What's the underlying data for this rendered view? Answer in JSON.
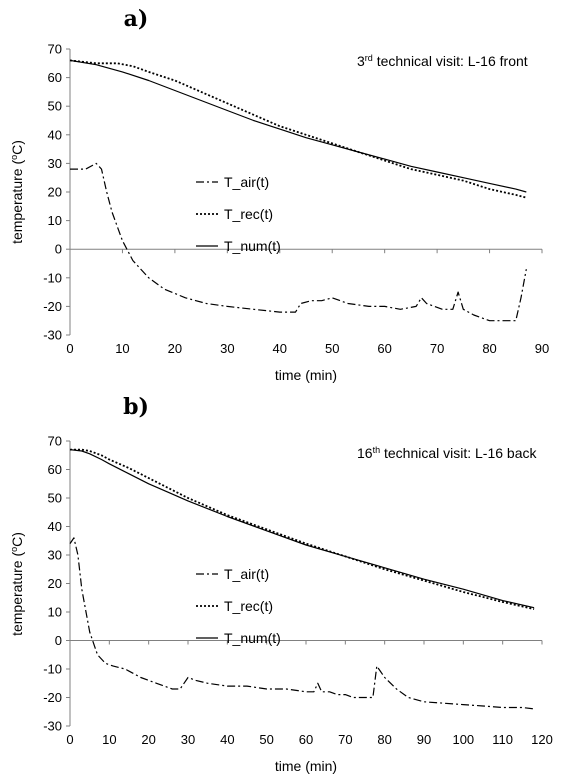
{
  "chart_data": [
    {
      "panel": "a)",
      "type": "line",
      "annotation": {
        "prefix": "3",
        "sup": "rd",
        "suffix": " technical visit: L-16 front"
      },
      "xlabel": "time (min)",
      "ylabel": {
        "text": "temperature (",
        "sup": "o",
        "tail": "C)"
      },
      "xlim": [
        0,
        90
      ],
      "ylim": [
        -30,
        70
      ],
      "xticks": [
        0,
        10,
        20,
        30,
        40,
        50,
        60,
        70,
        80,
        90
      ],
      "yticks": [
        -30,
        -20,
        -10,
        0,
        10,
        20,
        30,
        40,
        50,
        60,
        70
      ],
      "legend": {
        "placement": "center-left"
      },
      "series": [
        {
          "name": "T_air(t)",
          "style": "dashdot",
          "x": [
            0,
            3,
            5,
            6,
            7,
            8,
            10,
            12,
            15,
            18,
            22,
            26,
            30,
            35,
            40,
            43,
            44,
            46,
            48,
            50,
            53,
            57,
            60,
            63,
            66,
            67,
            68,
            71,
            73,
            74,
            75,
            77,
            80,
            82,
            84,
            85,
            86,
            87
          ],
          "y": [
            28,
            28,
            30,
            28,
            20,
            13,
            3,
            -4,
            -10,
            -14,
            -17,
            -19,
            -20,
            -21,
            -22,
            -22,
            -19,
            -18,
            -18,
            -17,
            -19,
            -20,
            -20,
            -21,
            -20,
            -17,
            -19,
            -21,
            -21,
            -15,
            -21,
            -23,
            -25,
            -25,
            -25,
            -25,
            -17,
            -7
          ]
        },
        {
          "name": "T_rec(t)",
          "style": "dotted",
          "x": [
            0,
            5,
            9,
            12,
            15,
            20,
            25,
            30,
            35,
            40,
            45,
            50,
            55,
            60,
            65,
            70,
            75,
            80,
            85,
            87
          ],
          "y": [
            66,
            65,
            65,
            64,
            62,
            59,
            55,
            51,
            47,
            43,
            40,
            37,
            34,
            31,
            28,
            26,
            24,
            21,
            19,
            18
          ]
        },
        {
          "name": "T_num(t)",
          "style": "solid",
          "x": [
            0,
            5,
            10,
            15,
            20,
            25,
            30,
            35,
            40,
            45,
            50,
            55,
            60,
            65,
            70,
            75,
            80,
            85,
            87
          ],
          "y": [
            66,
            64.5,
            62,
            59,
            55.5,
            52,
            48.5,
            45,
            42,
            39,
            36.5,
            34,
            31.5,
            29,
            27,
            25,
            23,
            21,
            20
          ]
        }
      ]
    },
    {
      "panel": "b)",
      "type": "line",
      "annotation": {
        "prefix": "16",
        "sup": "th",
        "suffix": " technical visit: L-16 back"
      },
      "xlabel": "time (min)",
      "ylabel": {
        "text": "temperature (",
        "sup": "o",
        "tail": "C)"
      },
      "xlim": [
        0,
        120
      ],
      "ylim": [
        -30,
        70
      ],
      "xticks": [
        0,
        10,
        20,
        30,
        40,
        50,
        60,
        70,
        80,
        90,
        100,
        110,
        120
      ],
      "yticks": [
        -30,
        -20,
        -10,
        0,
        10,
        20,
        30,
        40,
        50,
        60,
        70
      ],
      "legend": {
        "placement": "center-left"
      },
      "series": [
        {
          "name": "T_air(t)",
          "style": "dashdot",
          "x": [
            0,
            1,
            2,
            3,
            5,
            7,
            9,
            11,
            14,
            18,
            22,
            26,
            28,
            30,
            32,
            35,
            40,
            45,
            50,
            55,
            60,
            62,
            63,
            64,
            66,
            68,
            70,
            72,
            75,
            77,
            78,
            80,
            83,
            86,
            90,
            100,
            105,
            110,
            115,
            118
          ],
          "y": [
            34,
            36,
            30,
            18,
            3,
            -5,
            -8,
            -9,
            -10,
            -13,
            -15,
            -17,
            -17,
            -13,
            -14,
            -15,
            -16,
            -16,
            -17,
            -17,
            -18,
            -18,
            -15,
            -18,
            -18,
            -19,
            -19,
            -20,
            -20,
            -20,
            -9,
            -13,
            -17,
            -20,
            -21.5,
            -22.5,
            -23,
            -23.5,
            -23.5,
            -24
          ]
        },
        {
          "name": "T_rec(t)",
          "style": "dotted",
          "x": [
            0,
            3,
            5,
            8,
            10,
            15,
            20,
            25,
            30,
            40,
            50,
            60,
            70,
            80,
            90,
            100,
            110,
            118
          ],
          "y": [
            67,
            67,
            66.5,
            65,
            63.5,
            60.5,
            57,
            53.5,
            50,
            44,
            39,
            34,
            29.5,
            25,
            21,
            17,
            13.5,
            11
          ]
        },
        {
          "name": "T_num(t)",
          "style": "solid",
          "x": [
            0,
            3,
            5,
            8,
            10,
            15,
            20,
            25,
            30,
            40,
            50,
            60,
            70,
            80,
            90,
            100,
            110,
            118
          ],
          "y": [
            67,
            66.5,
            65.5,
            63.5,
            62,
            58.5,
            55,
            52,
            49,
            43.5,
            38.5,
            33.5,
            29.5,
            25.5,
            21.5,
            18,
            14,
            11.5
          ]
        }
      ]
    }
  ]
}
